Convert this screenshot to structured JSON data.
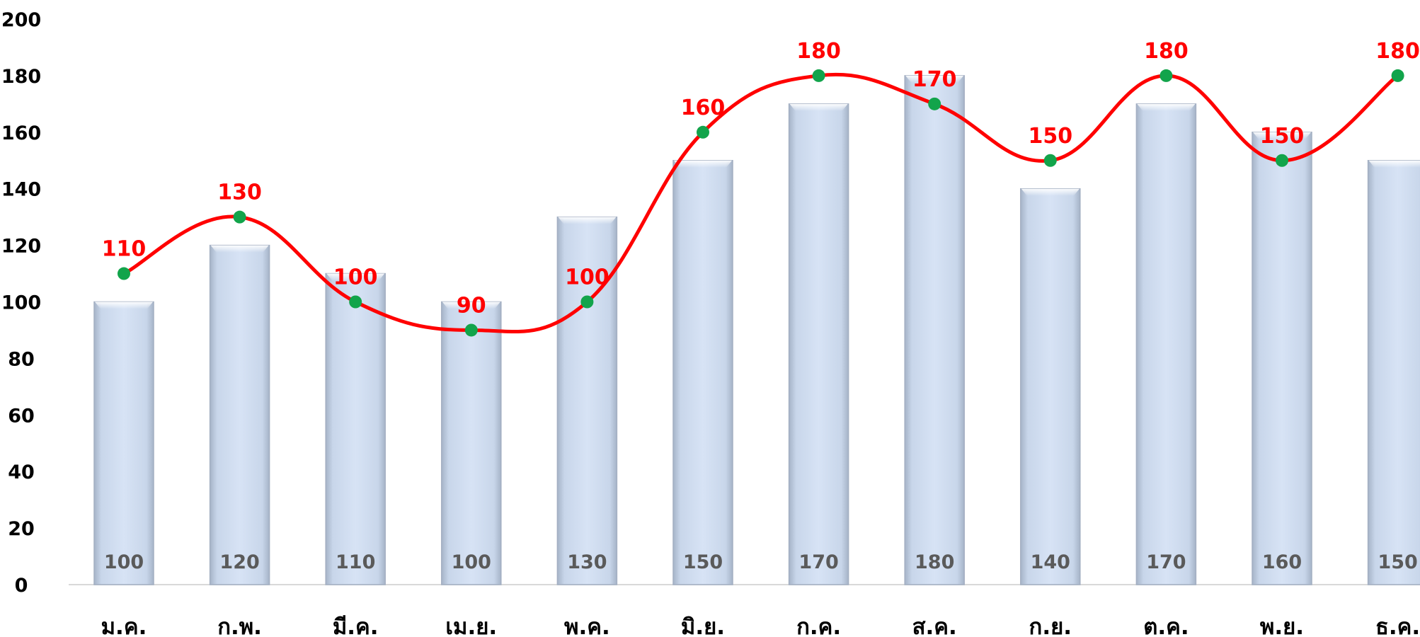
{
  "chart_data": {
    "type": "bar",
    "categories": [
      "ม.ค.",
      "ก.พ.",
      "มี.ค.",
      "เม.ย.",
      "พ.ค.",
      "มิ.ย.",
      "ก.ค.",
      "ส.ค.",
      "ก.ย.",
      "ต.ค.",
      "พ.ย.",
      "ธ.ค."
    ],
    "series": [
      {
        "kind": "bar",
        "values": [
          100,
          120,
          110,
          100,
          130,
          150,
          170,
          180,
          140,
          170,
          160,
          150
        ]
      },
      {
        "kind": "line",
        "smooth": true,
        "values": [
          110,
          130,
          100,
          90,
          100,
          160,
          180,
          170,
          150,
          180,
          150,
          180
        ]
      }
    ],
    "y_ticks": [
      0,
      20,
      40,
      60,
      80,
      100,
      120,
      140,
      160,
      180,
      200
    ],
    "ylim": [
      0,
      200
    ],
    "grid": false,
    "legend": "none",
    "title": "",
    "xlabel": "",
    "ylabel": "",
    "colors": {
      "bar_fill": "#ccdcf2",
      "bar_edge": "#a3afc2",
      "line": "#ff0000",
      "marker": "#12a44b",
      "line_label": "#ff0000",
      "bar_label": "#5a5a5a",
      "axis": "#d9d9d9"
    }
  }
}
